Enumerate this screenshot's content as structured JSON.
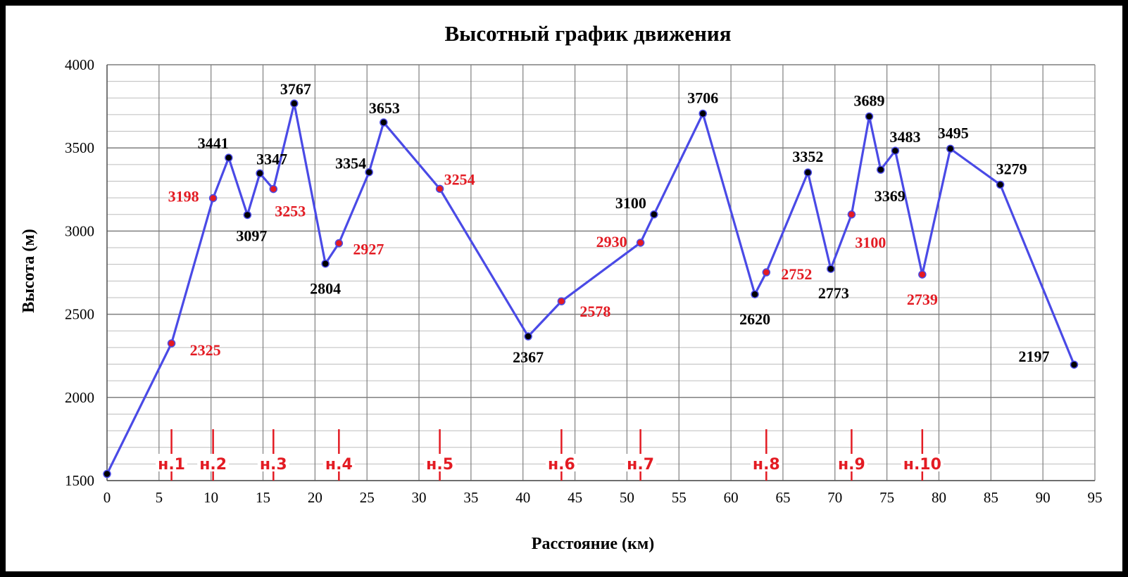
{
  "chart_data": {
    "type": "line",
    "title": "Высотный график движения",
    "xlabel": "Расстояние (км)",
    "ylabel": "Высота (м)",
    "xlim": [
      0,
      95
    ],
    "ylim": [
      1500,
      4000
    ],
    "x_ticks": [
      "0",
      "5",
      "10",
      "15",
      "20",
      "25",
      "30",
      "35",
      "40",
      "45",
      "50",
      "55",
      "60",
      "65",
      "70",
      "75",
      "80",
      "85",
      "90",
      "95"
    ],
    "y_ticks": [
      "1500",
      "2000",
      "2500",
      "3000",
      "3500",
      "4000"
    ],
    "grid": true,
    "colors": {
      "line": "#4a4ae6",
      "marker_black": "#000000",
      "marker_red": "#e31b23",
      "label_red": "#e31b23",
      "label_black": "#000000"
    },
    "points": [
      {
        "x": 0.0,
        "y": 1540,
        "label": "",
        "red": false
      },
      {
        "x": 6.2,
        "y": 2325,
        "label": "2325",
        "red": true
      },
      {
        "x": 10.2,
        "y": 3198,
        "label": "3198",
        "red": true
      },
      {
        "x": 11.7,
        "y": 3441,
        "label": "3441",
        "red": false
      },
      {
        "x": 13.5,
        "y": 3097,
        "label": "3097",
        "red": false
      },
      {
        "x": 14.7,
        "y": 3347,
        "label": "3347",
        "red": false
      },
      {
        "x": 16.0,
        "y": 3253,
        "label": "3253",
        "red": true
      },
      {
        "x": 18.0,
        "y": 3767,
        "label": "3767",
        "red": false
      },
      {
        "x": 21.0,
        "y": 2804,
        "label": "2804",
        "red": false
      },
      {
        "x": 22.3,
        "y": 2927,
        "label": "2927",
        "red": true
      },
      {
        "x": 25.2,
        "y": 3354,
        "label": "3354",
        "red": false
      },
      {
        "x": 26.6,
        "y": 3653,
        "label": "3653",
        "red": false
      },
      {
        "x": 32.0,
        "y": 3254,
        "label": "3254",
        "red": true
      },
      {
        "x": 40.5,
        "y": 2367,
        "label": "2367",
        "red": false
      },
      {
        "x": 43.7,
        "y": 2578,
        "label": "2578",
        "red": true
      },
      {
        "x": 51.3,
        "y": 2930,
        "label": "2930",
        "red": true
      },
      {
        "x": 52.6,
        "y": 3100,
        "label": "3100",
        "red": false
      },
      {
        "x": 57.3,
        "y": 3706,
        "label": "3706",
        "red": false
      },
      {
        "x": 62.3,
        "y": 2620,
        "label": "2620",
        "red": false
      },
      {
        "x": 63.4,
        "y": 2752,
        "label": "2752",
        "red": true
      },
      {
        "x": 67.4,
        "y": 3352,
        "label": "3352",
        "red": false
      },
      {
        "x": 69.6,
        "y": 2773,
        "label": "2773",
        "red": false
      },
      {
        "x": 71.6,
        "y": 3100,
        "label": "3100",
        "red": true
      },
      {
        "x": 73.3,
        "y": 3689,
        "label": "3689",
        "red": false
      },
      {
        "x": 74.4,
        "y": 3369,
        "label": "3369",
        "red": false
      },
      {
        "x": 75.8,
        "y": 3483,
        "label": "3483",
        "red": false
      },
      {
        "x": 78.4,
        "y": 2739,
        "label": "2739",
        "red": true
      },
      {
        "x": 81.1,
        "y": 3495,
        "label": "3495",
        "red": false
      },
      {
        "x": 85.9,
        "y": 3279,
        "label": "3279",
        "red": false
      },
      {
        "x": 93.0,
        "y": 2197,
        "label": "2197",
        "red": false
      }
    ],
    "camps": [
      {
        "x": 6.2,
        "label": "н.1"
      },
      {
        "x": 10.2,
        "label": "н.2"
      },
      {
        "x": 16.0,
        "label": "н.3"
      },
      {
        "x": 22.3,
        "label": "н.4"
      },
      {
        "x": 32.0,
        "label": "н.5"
      },
      {
        "x": 43.7,
        "label": "н.6"
      },
      {
        "x": 51.3,
        "label": "н.7"
      },
      {
        "x": 63.4,
        "label": "н.8"
      },
      {
        "x": 71.6,
        "label": "н.9"
      },
      {
        "x": 78.4,
        "label": "н.10"
      }
    ]
  }
}
